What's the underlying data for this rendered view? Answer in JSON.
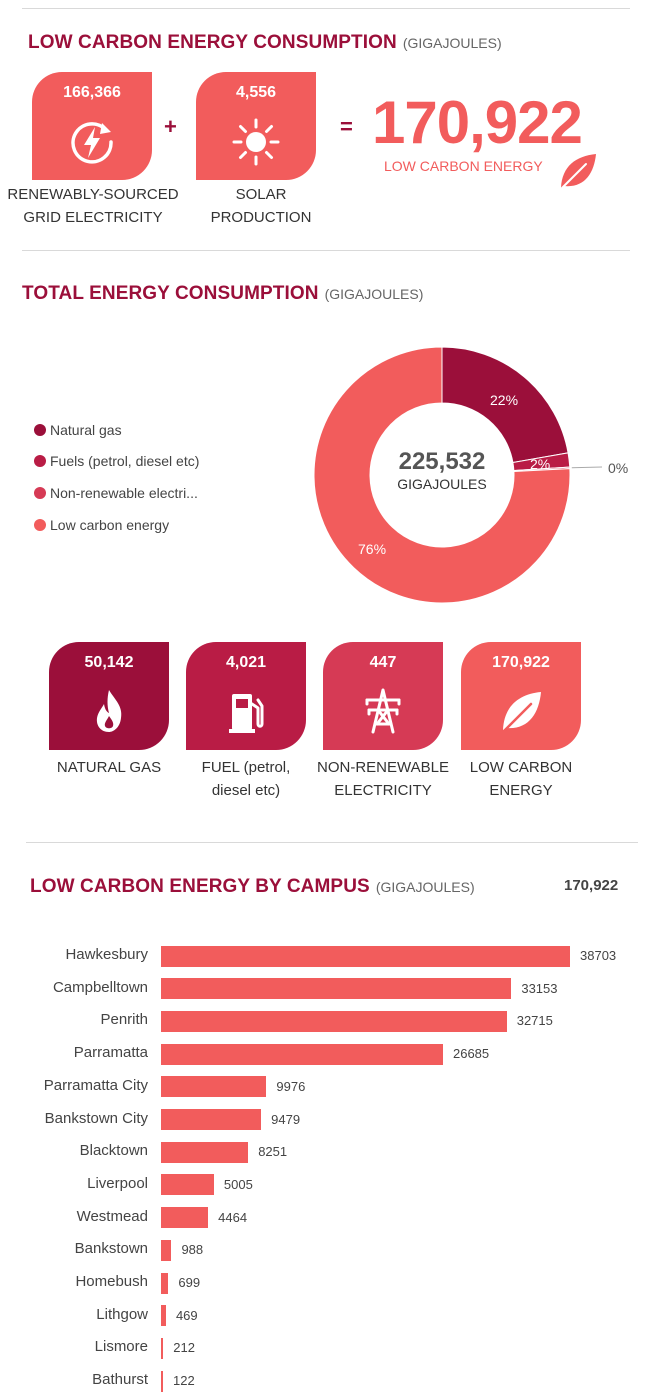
{
  "colors": {
    "title": "#9b0f3a",
    "coral": "#f25c5c",
    "natural_gas": "#9b0f3a",
    "fuels": "#b91c45",
    "non_renewable": "#d63a55",
    "low_carbon": "#f25c5c"
  },
  "section1": {
    "title": "LOW CARBON ENERGY CONSUMPTION",
    "unit": "(GIGAJOULES)",
    "tile1": {
      "value": "166,366",
      "icon": "renewable-electricity-icon",
      "caption_line1": "RENEWABLY-SOURCED",
      "caption_line2": "GRID ELECTRICITY"
    },
    "plus": "+",
    "tile2": {
      "value": "4,556",
      "icon": "sun-icon",
      "caption_line1": "SOLAR",
      "caption_line2": "PRODUCTION"
    },
    "equals": "=",
    "total": "170,922",
    "total_label": "LOW CARBON ENERGY",
    "total_icon": "leaf-icon"
  },
  "section2": {
    "title": "TOTAL ENERGY CONSUMPTION",
    "unit": "(GIGAJOULES)",
    "center_value": "225,532",
    "center_label": "GIGAJOULES",
    "tiles": [
      {
        "value": "50,142",
        "icon": "flame-icon",
        "caption_line1": "NATURAL GAS",
        "caption_line2": ""
      },
      {
        "value": "4,021",
        "icon": "fuel-pump-icon",
        "caption_line1": "FUEL (petrol,",
        "caption_line2": "diesel etc)"
      },
      {
        "value": "447",
        "icon": "power-pylon-icon",
        "caption_line1": "NON-RENEWABLE",
        "caption_line2": "ELECTRICITY"
      },
      {
        "value": "170,922",
        "icon": "leaf-icon",
        "caption_line1": "LOW CARBON",
        "caption_line2": "ENERGY"
      }
    ]
  },
  "section3": {
    "title": "LOW CARBON ENERGY BY CAMPUS",
    "unit": "(GIGAJOULES)",
    "total": "170,922"
  },
  "chart_data": [
    {
      "type": "pie",
      "variant": "donut",
      "legend_position": "left",
      "categories": [
        "Natural gas",
        "Fuels (petrol, diesel etc)",
        "Non-renewable electri...",
        "Low carbon energy"
      ],
      "values": [
        50142,
        4021,
        447,
        170922
      ],
      "data_labels": [
        "22%",
        "2%",
        "0%",
        "76%"
      ],
      "colors": [
        "#9b0f3a",
        "#b91c45",
        "#d63a55",
        "#f25c5c"
      ]
    },
    {
      "type": "bar",
      "orientation": "horizontal",
      "categories": [
        "Hawkesbury",
        "Campbelltown",
        "Penrith",
        "Parramatta",
        "Parramatta City",
        "Bankstown City",
        "Blacktown",
        "Liverpool",
        "Westmead",
        "Bankstown",
        "Homebush",
        "Lithgow",
        "Lismore",
        "Bathurst"
      ],
      "values": [
        38703,
        33153,
        32715,
        26685,
        9976,
        9479,
        8251,
        5005,
        4464,
        988,
        699,
        469,
        212,
        122
      ],
      "color": "#f25c5c",
      "grid": false
    }
  ]
}
